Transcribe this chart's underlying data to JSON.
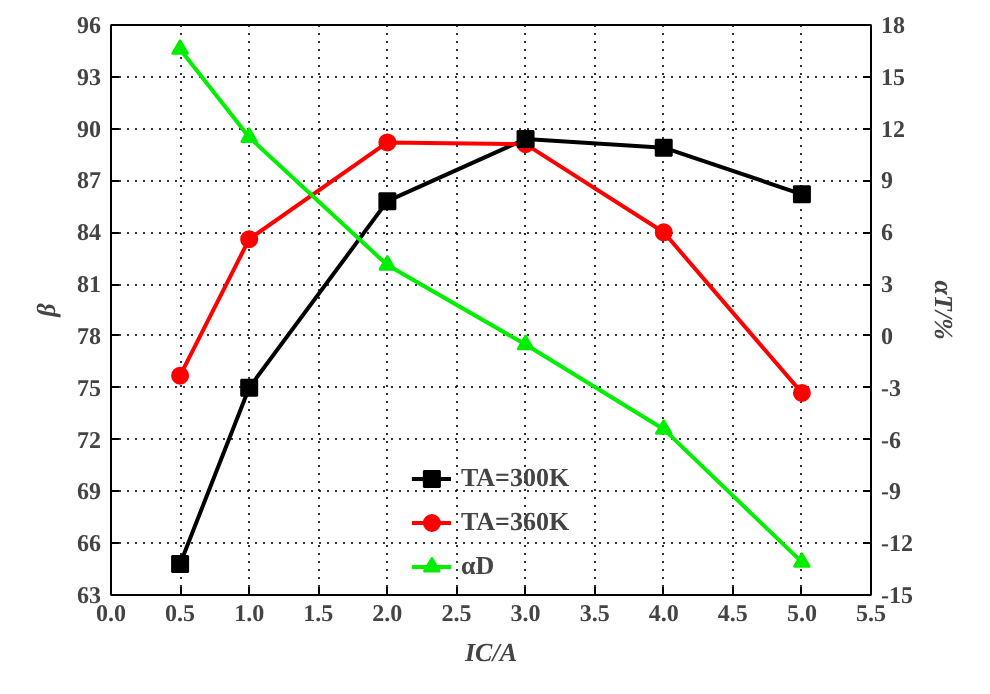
{
  "chart_data": {
    "type": "line",
    "xlabel": "IC/A",
    "ylabel": "β",
    "y2label": "αT/%",
    "x": [
      0.5,
      1.0,
      2.0,
      3.0,
      4.0,
      5.0
    ],
    "series": [
      {
        "name": "TA=300K",
        "color": "#000000",
        "marker": "square",
        "values": [
          64.8,
          75.0,
          85.8,
          89.4,
          88.9,
          86.2
        ]
      },
      {
        "name": "TA=360K",
        "color": "#ff0000",
        "marker": "circle",
        "values": [
          75.7,
          83.6,
          89.2,
          89.1,
          84.0,
          74.7
        ]
      },
      {
        "name": "αD",
        "color": "#00ee00",
        "marker": "triangle",
        "axis": "y2",
        "values": [
          16.6,
          11.5,
          4.1,
          -0.5,
          -5.4,
          -13.1
        ]
      }
    ],
    "xlim": [
      0.0,
      5.5
    ],
    "xticks": [
      {
        "value": 0,
        "label": "0.0"
      },
      0.5,
      {
        "value": 1,
        "label": "1.0"
      },
      1.5,
      {
        "value": 2,
        "label": "2.0"
      },
      2.5,
      {
        "value": 3,
        "label": "3.0"
      },
      3.5,
      {
        "value": 4,
        "label": "4.0"
      },
      4.5,
      {
        "value": 5,
        "label": "5.0"
      },
      5.5
    ],
    "ylim": [
      63,
      96
    ],
    "yticks": [
      63,
      66,
      69,
      72,
      75,
      78,
      81,
      84,
      87,
      90,
      93,
      96
    ],
    "y2lim": [
      -15,
      18
    ],
    "y2ticks": [
      -15,
      -12,
      -9,
      -6,
      -3,
      0,
      3,
      6,
      9,
      12,
      15,
      18
    ],
    "grid": true,
    "legend": "bottom",
    "line_style": "solid"
  }
}
